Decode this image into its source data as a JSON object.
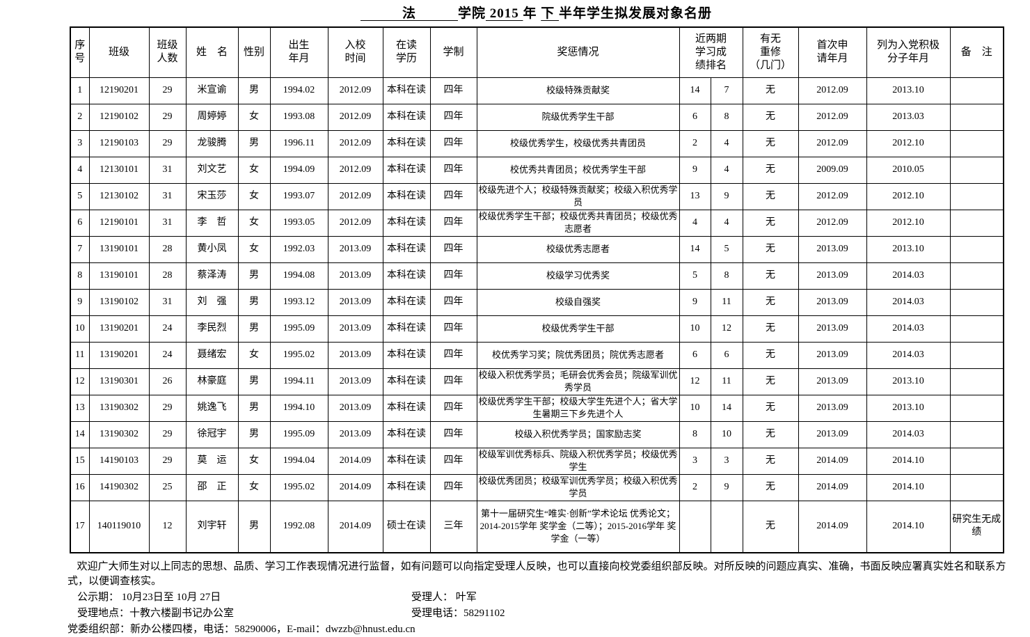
{
  "title": {
    "college_blank": "　　　法　　　",
    "college_label": "学院",
    "year": " 2015 ",
    "year_label": " 年 ",
    "term": " 下 ",
    "suffix": " 半年学生拟发展对象名册"
  },
  "table": {
    "headers": [
      {
        "label": "序\n号"
      },
      {
        "label": "班级"
      },
      {
        "label": "班级\n人数"
      },
      {
        "label": "姓　名"
      },
      {
        "label": "性别"
      },
      {
        "label": "出生\n年月"
      },
      {
        "label": "入校\n时间"
      },
      {
        "label": "在读\n学历"
      },
      {
        "label": "学制"
      },
      {
        "label": "奖惩情况"
      },
      {
        "label": "近两期\n学习成\n绩排名",
        "colspan": 2
      },
      {
        "label": "有无\n重修\n（几门）"
      },
      {
        "label": "首次申\n请年月"
      },
      {
        "label": "列为入党积极\n分子年月"
      },
      {
        "label": "备　注"
      }
    ],
    "rows": [
      [
        "1",
        "12190201",
        "29",
        "米宣谕",
        "男",
        "1994.02",
        "2012.09",
        "本科在读",
        "四年",
        "校级特殊贡献奖",
        "14",
        "7",
        "无",
        "2012.09",
        "2013.10",
        ""
      ],
      [
        "2",
        "12190102",
        "29",
        "周婷婷",
        "女",
        "1993.08",
        "2012.09",
        "本科在读",
        "四年",
        "院级优秀学生干部",
        "6",
        "8",
        "无",
        "2012.09",
        "2013.03",
        ""
      ],
      [
        "3",
        "12190103",
        "29",
        "龙骏腾",
        "男",
        "1996.11",
        "2012.09",
        "本科在读",
        "四年",
        "校级优秀学生，校级优秀共青团员",
        "2",
        "4",
        "无",
        "2012.09",
        "2012.10",
        ""
      ],
      [
        "4",
        "12130101",
        "31",
        "刘文艺",
        "女",
        "1994.09",
        "2012.09",
        "本科在读",
        "四年",
        "校优秀共青团员；校优秀学生干部",
        "9",
        "4",
        "无",
        "2009.09",
        "2010.05",
        ""
      ],
      [
        "5",
        "12130102",
        "31",
        "宋玉莎",
        "女",
        "1993.07",
        "2012.09",
        "本科在读",
        "四年",
        "校级先进个人；校级特殊贡献奖；校级入积优秀学员",
        "13",
        "9",
        "无",
        "2012.09",
        "2012.10",
        ""
      ],
      [
        "6",
        "12190101",
        "31",
        "李　哲",
        "女",
        "1993.05",
        "2012.09",
        "本科在读",
        "四年",
        "校级优秀学生干部；校级优秀共青团员；校级优秀志愿者",
        "4",
        "4",
        "无",
        "2012.09",
        "2012.10",
        ""
      ],
      [
        "7",
        "13190101",
        "28",
        "黄小凤",
        "女",
        "1992.03",
        "2013.09",
        "本科在读",
        "四年",
        "校级优秀志愿者",
        "14",
        "5",
        "无",
        "2013.09",
        "2013.10",
        ""
      ],
      [
        "8",
        "13190101",
        "28",
        "蔡泽涛",
        "男",
        "1994.08",
        "2013.09",
        "本科在读",
        "四年",
        "校级学习优秀奖",
        "5",
        "8",
        "无",
        "2013.09",
        "2014.03",
        ""
      ],
      [
        "9",
        "13190102",
        "31",
        "刘　强",
        "男",
        "1993.12",
        "2013.09",
        "本科在读",
        "四年",
        "校级自强奖",
        "9",
        "11",
        "无",
        "2013.09",
        "2014.03",
        ""
      ],
      [
        "10",
        "13190201",
        "24",
        "李民烈",
        "男",
        "1995.09",
        "2013.09",
        "本科在读",
        "四年",
        "校级优秀学生干部",
        "10",
        "12",
        "无",
        "2013.09",
        "2014.03",
        ""
      ],
      [
        "11",
        "13190201",
        "24",
        "聂绪宏",
        "女",
        "1995.02",
        "2013.09",
        "本科在读",
        "四年",
        "校优秀学习奖；院优秀团员；院优秀志愿者",
        "6",
        "6",
        "无",
        "2013.09",
        "2014.03",
        ""
      ],
      [
        "12",
        "13190301",
        "26",
        "林豪庭",
        "男",
        "1994.11",
        "2013.09",
        "本科在读",
        "四年",
        "校级入积优秀学员；毛研会优秀会员；院级军训优秀学员",
        "12",
        "11",
        "无",
        "2013.09",
        "2013.10",
        ""
      ],
      [
        "13",
        "13190302",
        "29",
        "姚逸飞",
        "男",
        "1994.10",
        "2013.09",
        "本科在读",
        "四年",
        "校级优秀学生干部；校级大学生先进个人；省大学生暑期三下乡先进个人",
        "10",
        "14",
        "无",
        "2013.09",
        "2013.10",
        ""
      ],
      [
        "14",
        "13190302",
        "29",
        "徐冠宇",
        "男",
        "1995.09",
        "2013.09",
        "本科在读",
        "四年",
        "校级入积优秀学员；国家励志奖",
        "8",
        "10",
        "无",
        "2013.09",
        "2014.03",
        ""
      ],
      [
        "15",
        "14190103",
        "29",
        "莫　运",
        "女",
        "1994.04",
        "2014.09",
        "本科在读",
        "四年",
        "校级军训优秀标兵、院级入积优秀学员；校级优秀学生",
        "3",
        "3",
        "无",
        "2014.09",
        "2014.10",
        ""
      ],
      [
        "16",
        "14190302",
        "25",
        "邵　正",
        "女",
        "1995.02",
        "2014.09",
        "本科在读",
        "四年",
        "校级优秀团员；校级军训优秀学员；校级入积优秀学员",
        "2",
        "9",
        "无",
        "2014.09",
        "2014.10",
        ""
      ],
      [
        "17",
        "140119010",
        "12",
        "刘宇轩",
        "男",
        "1992.08",
        "2014.09",
        "硕士在读",
        "三年",
        "第十一届研究生“唯实·创新”学术论坛 优秀论文；2014-2015学年 奖学金（二等）；2015-2016学年 奖学金（一等）",
        "",
        "",
        "无",
        "2014.09",
        "2014.10",
        "研究生无成绩"
      ]
    ]
  },
  "footer": {
    "notice": "欢迎广大师生对以上同志的思想、品质、学习工作表现情况进行监督，如有问题可以向指定受理人反映，也可以直接向校党委组织部反映。对所反映的问题应真实、准确，书面反映应署真实姓名和联系方式，以便调查核实。",
    "publicity_period": "公示期：  10月23日至 10月 27日",
    "acceptor": "受理人：  叶军",
    "location": "受理地点：十教六楼副书记办公室",
    "phone": "受理电话：58291102",
    "org": "党委组织部：新办公楼四楼，电话：58290006，E-mail：dwzzb@hnust.edu.cn"
  }
}
